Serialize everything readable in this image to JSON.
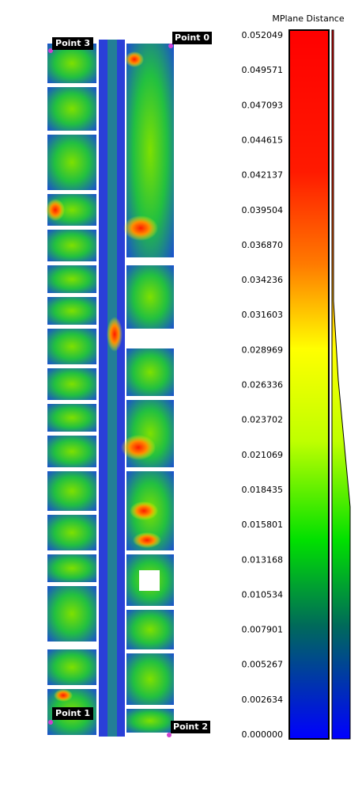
{
  "points": [
    "Point 3",
    "Point 0",
    "Point 1",
    "Point 2"
  ],
  "colorbar": {
    "title": "MPlane Distance",
    "ticks": [
      "0.052049",
      "0.049571",
      "0.047093",
      "0.044615",
      "0.042137",
      "0.039504",
      "0.036870",
      "0.034236",
      "0.031603",
      "0.028969",
      "0.026336",
      "0.023702",
      "0.021069",
      "0.018435",
      "0.015801",
      "0.013168",
      "0.010534",
      "0.007901",
      "0.005267",
      "0.002634",
      "0.000000"
    ]
  }
}
